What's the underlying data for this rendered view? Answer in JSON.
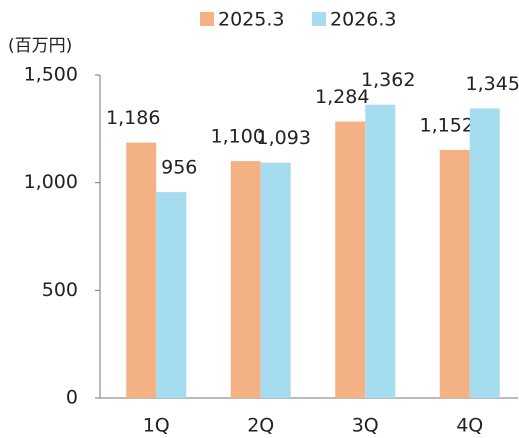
{
  "chart_data": {
    "type": "bar",
    "unit_label": "(百万円)",
    "categories": [
      "1Q",
      "2Q",
      "3Q",
      "4Q"
    ],
    "series": [
      {
        "name": "2025.3",
        "color": "#f4b183",
        "values": [
          1186,
          1100,
          1284,
          1152
        ],
        "value_labels": [
          "1,186",
          "1,100",
          "1,284",
          "1,152"
        ]
      },
      {
        "name": "2026.3",
        "color": "#a6dcef",
        "values": [
          956,
          1093,
          1362,
          1345
        ],
        "value_labels": [
          "956",
          "1,093",
          "1,362",
          "1,345"
        ]
      }
    ],
    "ylim": [
      0,
      1500
    ],
    "yticks": [
      0,
      500,
      {
        "value": 1000,
        "label": "1,000"
      },
      {
        "value": 1500,
        "label": "1,500"
      }
    ],
    "legend": "top"
  }
}
